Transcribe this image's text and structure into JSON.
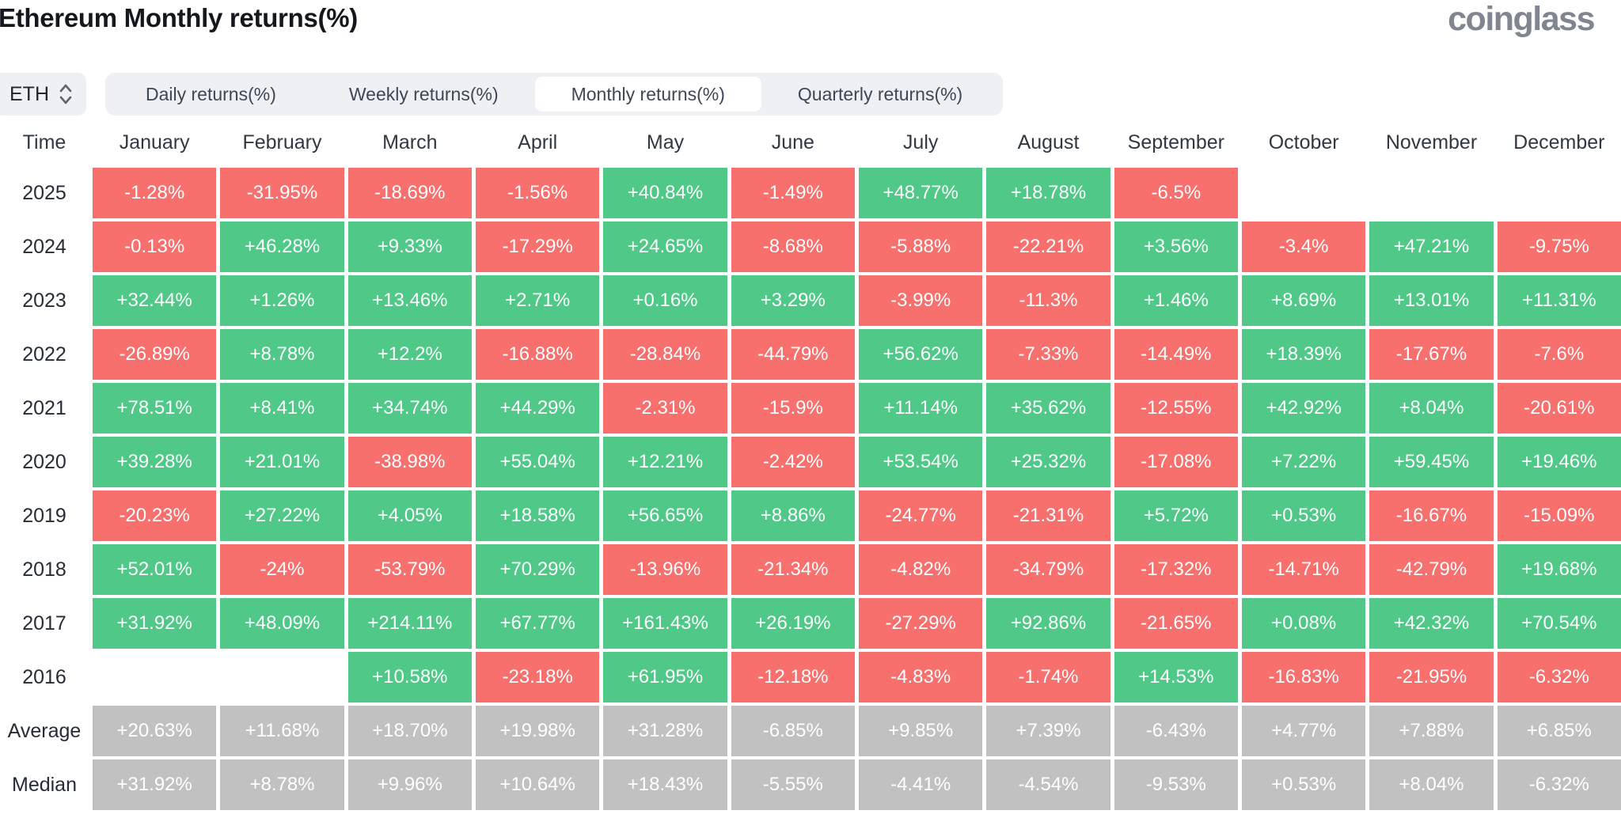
{
  "page": {
    "title": "Ethereum Monthly returns(%)",
    "brand": "coinglass"
  },
  "controls": {
    "symbol": {
      "value": "ETH"
    },
    "tabs": [
      {
        "label": "Daily returns(%)",
        "active": false
      },
      {
        "label": "Weekly returns(%)",
        "active": false
      },
      {
        "label": "Monthly returns(%)",
        "active": true
      },
      {
        "label": "Quarterly returns(%)",
        "active": false
      }
    ]
  },
  "colors": {
    "positive": "#4FC888",
    "negative": "#F7706E",
    "summary": "#C1C1C1"
  },
  "table": {
    "time_header": "Time",
    "months": [
      "January",
      "February",
      "March",
      "April",
      "May",
      "June",
      "July",
      "August",
      "September",
      "October",
      "November",
      "December"
    ],
    "rows": [
      {
        "label": "2025",
        "type": "year",
        "values": [
          "-1.28%",
          "-31.95%",
          "-18.69%",
          "-1.56%",
          "+40.84%",
          "-1.49%",
          "+48.77%",
          "+18.78%",
          "-6.5%",
          "",
          "",
          ""
        ]
      },
      {
        "label": "2024",
        "type": "year",
        "values": [
          "-0.13%",
          "+46.28%",
          "+9.33%",
          "-17.29%",
          "+24.65%",
          "-8.68%",
          "-5.88%",
          "-22.21%",
          "+3.56%",
          "-3.4%",
          "+47.21%",
          "-9.75%"
        ]
      },
      {
        "label": "2023",
        "type": "year",
        "values": [
          "+32.44%",
          "+1.26%",
          "+13.46%",
          "+2.71%",
          "+0.16%",
          "+3.29%",
          "-3.99%",
          "-11.3%",
          "+1.46%",
          "+8.69%",
          "+13.01%",
          "+11.31%"
        ]
      },
      {
        "label": "2022",
        "type": "year",
        "values": [
          "-26.89%",
          "+8.78%",
          "+12.2%",
          "-16.88%",
          "-28.84%",
          "-44.79%",
          "+56.62%",
          "-7.33%",
          "-14.49%",
          "+18.39%",
          "-17.67%",
          "-7.6%"
        ]
      },
      {
        "label": "2021",
        "type": "year",
        "values": [
          "+78.51%",
          "+8.41%",
          "+34.74%",
          "+44.29%",
          "-2.31%",
          "-15.9%",
          "+11.14%",
          "+35.62%",
          "-12.55%",
          "+42.92%",
          "+8.04%",
          "-20.61%"
        ]
      },
      {
        "label": "2020",
        "type": "year",
        "values": [
          "+39.28%",
          "+21.01%",
          "-38.98%",
          "+55.04%",
          "+12.21%",
          "-2.42%",
          "+53.54%",
          "+25.32%",
          "-17.08%",
          "+7.22%",
          "+59.45%",
          "+19.46%"
        ]
      },
      {
        "label": "2019",
        "type": "year",
        "values": [
          "-20.23%",
          "+27.22%",
          "+4.05%",
          "+18.58%",
          "+56.65%",
          "+8.86%",
          "-24.77%",
          "-21.31%",
          "+5.72%",
          "+0.53%",
          "-16.67%",
          "-15.09%"
        ]
      },
      {
        "label": "2018",
        "type": "year",
        "values": [
          "+52.01%",
          "-24%",
          "-53.79%",
          "+70.29%",
          "-13.96%",
          "-21.34%",
          "-4.82%",
          "-34.79%",
          "-17.32%",
          "-14.71%",
          "-42.79%",
          "+19.68%"
        ]
      },
      {
        "label": "2017",
        "type": "year",
        "values": [
          "+31.92%",
          "+48.09%",
          "+214.11%",
          "+67.77%",
          "+161.43%",
          "+26.19%",
          "-27.29%",
          "+92.86%",
          "-21.65%",
          "+0.08%",
          "+42.32%",
          "+70.54%"
        ]
      },
      {
        "label": "2016",
        "type": "year",
        "values": [
          "",
          "",
          "+10.58%",
          "-23.18%",
          "+61.95%",
          "-12.18%",
          "-4.83%",
          "-1.74%",
          "+14.53%",
          "-16.83%",
          "-21.95%",
          "-6.32%"
        ]
      },
      {
        "label": "Average",
        "type": "summary",
        "values": [
          "+20.63%",
          "+11.68%",
          "+18.70%",
          "+19.98%",
          "+31.28%",
          "-6.85%",
          "+9.85%",
          "+7.39%",
          "-6.43%",
          "+4.77%",
          "+7.88%",
          "+6.85%"
        ]
      },
      {
        "label": "Median",
        "type": "summary",
        "values": [
          "+31.92%",
          "+8.78%",
          "+9.96%",
          "+10.64%",
          "+18.43%",
          "-5.55%",
          "-4.41%",
          "-4.54%",
          "-9.53%",
          "+0.53%",
          "+8.04%",
          "-6.32%"
        ]
      }
    ]
  },
  "chart_data": {
    "type": "heatmap",
    "title": "Ethereum Monthly returns(%)",
    "unit": "%",
    "x": [
      "January",
      "February",
      "March",
      "April",
      "May",
      "June",
      "July",
      "August",
      "September",
      "October",
      "November",
      "December"
    ],
    "y": [
      "2025",
      "2024",
      "2023",
      "2022",
      "2021",
      "2020",
      "2019",
      "2018",
      "2017",
      "2016",
      "Average",
      "Median"
    ],
    "series": [
      {
        "name": "2025",
        "values": [
          -1.28,
          -31.95,
          -18.69,
          -1.56,
          40.84,
          -1.49,
          48.77,
          18.78,
          -6.5,
          null,
          null,
          null
        ]
      },
      {
        "name": "2024",
        "values": [
          -0.13,
          46.28,
          9.33,
          -17.29,
          24.65,
          -8.68,
          -5.88,
          -22.21,
          3.56,
          -3.4,
          47.21,
          -9.75
        ]
      },
      {
        "name": "2023",
        "values": [
          32.44,
          1.26,
          13.46,
          2.71,
          0.16,
          3.29,
          -3.99,
          -11.3,
          1.46,
          8.69,
          13.01,
          11.31
        ]
      },
      {
        "name": "2022",
        "values": [
          -26.89,
          8.78,
          12.2,
          -16.88,
          -28.84,
          -44.79,
          56.62,
          -7.33,
          -14.49,
          18.39,
          -17.67,
          -7.6
        ]
      },
      {
        "name": "2021",
        "values": [
          78.51,
          8.41,
          34.74,
          44.29,
          -2.31,
          -15.9,
          11.14,
          35.62,
          -12.55,
          42.92,
          8.04,
          -20.61
        ]
      },
      {
        "name": "2020",
        "values": [
          39.28,
          21.01,
          -38.98,
          55.04,
          12.21,
          -2.42,
          53.54,
          25.32,
          -17.08,
          7.22,
          59.45,
          19.46
        ]
      },
      {
        "name": "2019",
        "values": [
          -20.23,
          27.22,
          4.05,
          18.58,
          56.65,
          8.86,
          -24.77,
          -21.31,
          5.72,
          0.53,
          -16.67,
          -15.09
        ]
      },
      {
        "name": "2018",
        "values": [
          52.01,
          -24,
          -53.79,
          70.29,
          -13.96,
          -21.34,
          -4.82,
          -34.79,
          -17.32,
          -14.71,
          -42.79,
          19.68
        ]
      },
      {
        "name": "2017",
        "values": [
          31.92,
          48.09,
          214.11,
          67.77,
          161.43,
          26.19,
          -27.29,
          92.86,
          -21.65,
          0.08,
          42.32,
          70.54
        ]
      },
      {
        "name": "2016",
        "values": [
          null,
          null,
          10.58,
          -23.18,
          61.95,
          -12.18,
          -4.83,
          -1.74,
          14.53,
          -16.83,
          -21.95,
          -6.32
        ]
      },
      {
        "name": "Average",
        "values": [
          20.63,
          11.68,
          18.7,
          19.98,
          31.28,
          -6.85,
          9.85,
          7.39,
          -6.43,
          4.77,
          7.88,
          6.85
        ]
      },
      {
        "name": "Median",
        "values": [
          31.92,
          8.78,
          9.96,
          10.64,
          18.43,
          -5.55,
          -4.41,
          -4.54,
          -9.53,
          0.53,
          8.04,
          -6.32
        ]
      }
    ],
    "legend": "none",
    "color_rule": "green=positive, red=negative, gray=Average/Median rows, blank=no data"
  }
}
